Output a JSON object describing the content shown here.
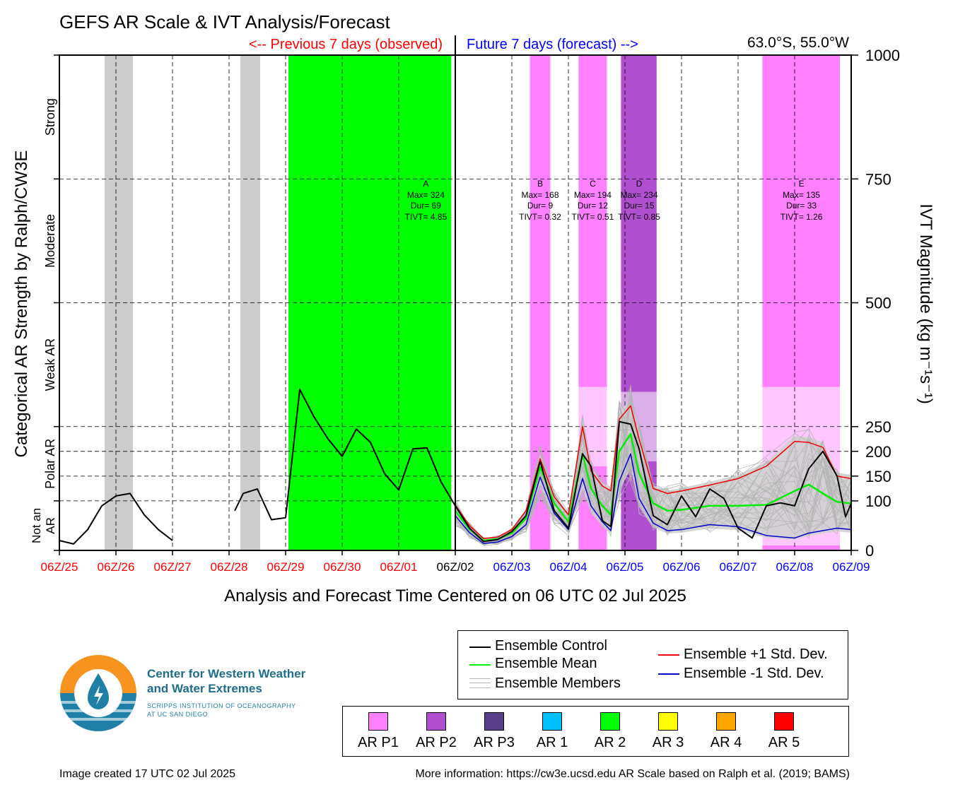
{
  "header": {
    "title": "GEFS AR Scale & IVT Analysis/Forecast",
    "previous_label": "<-- Previous 7 days (observed)",
    "future_label": "Future 7 days (forecast) -->",
    "location": "63.0°S, 55.0°W"
  },
  "colors": {
    "previous": "#ff0000",
    "future": "#0000ff",
    "control": "#000000",
    "mean": "#00ee00",
    "plus_std": "#ee0000",
    "minus_std": "#0000cc",
    "members": "#b4b4b4",
    "spread": "#d0d0d0",
    "grey_band": "#cccccc"
  },
  "chart_data": {
    "type": "line",
    "xlabel": "Analysis and Forecast Time Centered on 06 UTC 02 Jul 2025",
    "ylabel_left": "Categorical AR Strength by Ralph/CW3E",
    "ylabel_right": "IVT Magnitude (kg m⁻¹s⁻¹)",
    "x_unit": "days relative to 06Z/02 Jul 2025",
    "xlim": [
      -7,
      7
    ],
    "ylim": [
      0,
      1000
    ],
    "x_ticks": [
      {
        "x": -7,
        "label": "06Z/25",
        "color": "#ff0000"
      },
      {
        "x": -6,
        "label": "06Z/26",
        "color": "#ff0000"
      },
      {
        "x": -5,
        "label": "06Z/27",
        "color": "#ff0000"
      },
      {
        "x": -4,
        "label": "06Z/28",
        "color": "#ff0000"
      },
      {
        "x": -3,
        "label": "06Z/29",
        "color": "#ff0000"
      },
      {
        "x": -2,
        "label": "06Z/30",
        "color": "#ff0000"
      },
      {
        "x": -1,
        "label": "06Z/01",
        "color": "#ff0000"
      },
      {
        "x": 0,
        "label": "06Z/02",
        "color": "#000000"
      },
      {
        "x": 1,
        "label": "06Z/03",
        "color": "#0000ff"
      },
      {
        "x": 2,
        "label": "06Z/04",
        "color": "#0000ff"
      },
      {
        "x": 3,
        "label": "06Z/05",
        "color": "#0000ff"
      },
      {
        "x": 4,
        "label": "06Z/06",
        "color": "#0000ff"
      },
      {
        "x": 5,
        "label": "06Z/07",
        "color": "#0000ff"
      },
      {
        "x": 6,
        "label": "06Z/08",
        "color": "#0000ff"
      },
      {
        "x": 7,
        "label": "06Z/09",
        "color": "#0000ff"
      }
    ],
    "y_ticks": [
      0,
      100,
      150,
      200,
      250,
      500,
      750,
      1000
    ],
    "categories": [
      {
        "label": "Not an AR",
        "line1": "Not an",
        "line2": "AR",
        "from": 0,
        "to": 100
      },
      {
        "label": "Polar AR",
        "line1": "Polar AR",
        "line2": "",
        "from": 100,
        "to": 250
      },
      {
        "label": "Weak AR",
        "line1": "Weak AR",
        "line2": "",
        "from": 250,
        "to": 500
      },
      {
        "label": "Moderate",
        "line1": "Moderate",
        "line2": "",
        "from": 500,
        "to": 750
      },
      {
        "label": "Strong",
        "line1": "Strong",
        "line2": "",
        "from": 750,
        "to": 1000
      }
    ],
    "grey_bands": [
      [
        -6.2,
        -5.7
      ],
      [
        -3.8,
        -3.45
      ]
    ],
    "ar_bands": [
      {
        "x0": -2.95,
        "x1": -0.07,
        "color": "#00ff00",
        "full": true
      },
      {
        "x0": 1.32,
        "x1": 1.68,
        "color": "#ff80ff",
        "full": true
      },
      {
        "x0": 2.18,
        "x1": 2.68,
        "color": "#ff80ff",
        "full": false,
        "y_gap": [
          170,
          330
        ]
      },
      {
        "x0": 2.93,
        "x1": 3.56,
        "color": "#b050d0",
        "full": false,
        "y_gap": [
          180,
          320
        ]
      },
      {
        "x0": 5.43,
        "x1": 6.8,
        "color": "#ff80ff",
        "full": false,
        "y_gap": [
          10,
          330
        ]
      }
    ],
    "events": [
      {
        "x": -0.52,
        "name": "A",
        "max": "Max= 324",
        "dur": "Dur= 69",
        "tivt": "TIVT= 4.85"
      },
      {
        "x": 1.5,
        "name": "B",
        "max": "Max= 168",
        "dur": "Dur= 9",
        "tivt": "TIVT= 0.32"
      },
      {
        "x": 2.43,
        "name": "C",
        "max": "Max= 194",
        "dur": "Dur= 12",
        "tivt": "TIVT= 0.51"
      },
      {
        "x": 3.25,
        "name": "D",
        "max": "Max= 234",
        "dur": "Dur= 15",
        "tivt": "TIVT= 0.85"
      },
      {
        "x": 6.12,
        "name": "E",
        "max": "Max= 135",
        "dur": "Dur= 33",
        "tivt": "TIVT= 1.26"
      }
    ],
    "series": [
      {
        "name": "Ensemble Control",
        "segments": [
          {
            "x": [
              -7,
              -6.75,
              -6.5,
              -6.25,
              -6,
              -5.75,
              -5.5,
              -5.25,
              -5
            ],
            "y": [
              20,
              13,
              42,
              90,
              110,
              115,
              72,
              42,
              20
            ]
          },
          {
            "x": [
              -3.9,
              -3.75,
              -3.5,
              -3.25,
              -3
            ],
            "y": [
              80,
              115,
              124,
              62,
              66
            ]
          },
          {
            "x": [
              -3,
              -2.75,
              -2.5,
              -2.25,
              -2,
              -1.75,
              -1.5,
              -1.25,
              -1,
              -0.75,
              -0.5,
              -0.25,
              0
            ],
            "y": [
              66,
              325,
              270,
              225,
              190,
              245,
              218,
              155,
              122,
              205,
              207,
              138,
              90
            ]
          },
          {
            "x": [
              0,
              0.25,
              0.5,
              0.75,
              1,
              1.25,
              1.5,
              1.75,
              2,
              2.25,
              2.4,
              2.6,
              2.75,
              2.9,
              3.1,
              3.25,
              3.5,
              3.75,
              4,
              4.25,
              4.5,
              4.75,
              5,
              5.25,
              5.5,
              5.75,
              6,
              6.25,
              6.5,
              6.75,
              6.9,
              7
            ],
            "y": [
              90,
              45,
              18,
              22,
              38,
              70,
              180,
              80,
              45,
              195,
              170,
              60,
              48,
              260,
              255,
              205,
              70,
              52,
              110,
              68,
              124,
              105,
              45,
              25,
              90,
              96,
              90,
              165,
              200,
              150,
              68,
              95
            ]
          }
        ]
      },
      {
        "name": "Ensemble Mean",
        "segments": [
          {
            "x": [
              0,
              0.25,
              0.5,
              0.75,
              1,
              1.25,
              1.5,
              1.75,
              2,
              2.25,
              2.4,
              2.6,
              2.75,
              2.9,
              3.1,
              3.25,
              3.5,
              3.75,
              4,
              4.5,
              5,
              5.5,
              6,
              6.25,
              6.5,
              6.75,
              7
            ],
            "y": [
              80,
              43,
              20,
              23,
              35,
              65,
              168,
              95,
              58,
              195,
              125,
              90,
              72,
              200,
              235,
              155,
              95,
              80,
              82,
              90,
              90,
              92,
              120,
              133,
              115,
              98,
              95
            ]
          }
        ]
      },
      {
        "name": "Ensemble +1 Std. Dev.",
        "segments": [
          {
            "x": [
              0,
              0.25,
              0.5,
              0.75,
              1,
              1.25,
              1.5,
              1.75,
              2,
              2.25,
              2.4,
              2.6,
              2.75,
              2.9,
              3.1,
              3.25,
              3.5,
              3.75,
              4,
              4.5,
              5,
              5.5,
              6,
              6.25,
              6.5,
              6.75,
              7
            ],
            "y": [
              92,
              50,
              24,
              27,
              42,
              80,
              185,
              108,
              72,
              250,
              160,
              130,
              120,
              265,
              292,
              225,
              125,
              115,
              120,
              132,
              145,
              170,
              220,
              218,
              208,
              150,
              145
            ]
          }
        ]
      },
      {
        "name": "Ensemble -1 Std. Dev.",
        "segments": [
          {
            "x": [
              0,
              0.25,
              0.5,
              0.75,
              1,
              1.25,
              1.5,
              1.75,
              2,
              2.25,
              2.4,
              2.6,
              2.75,
              2.9,
              3.1,
              3.25,
              3.5,
              3.75,
              4,
              4.5,
              5,
              5.5,
              6,
              6.25,
              6.5,
              6.75,
              7
            ],
            "y": [
              70,
              36,
              14,
              17,
              28,
              52,
              148,
              75,
              42,
              145,
              90,
              58,
              40,
              140,
              195,
              105,
              55,
              40,
              42,
              52,
              48,
              30,
              25,
              35,
              40,
              45,
              42
            ]
          }
        ]
      }
    ],
    "members_count": 30
  },
  "legend": {
    "control": "Ensemble Control",
    "mean": "Ensemble Mean",
    "members": "Ensemble Members",
    "plus_std": "Ensemble +1 Std. Dev.",
    "minus_std": "Ensemble -1 Std. Dev."
  },
  "scale": [
    {
      "label": "AR P1",
      "color": "#ff80ff"
    },
    {
      "label": "AR P2",
      "color": "#b050d0"
    },
    {
      "label": "AR P3",
      "color": "#5a3f8c"
    },
    {
      "label": "AR 1",
      "color": "#00bfff"
    },
    {
      "label": "AR 2",
      "color": "#00ff00"
    },
    {
      "label": "AR 3",
      "color": "#ffff00"
    },
    {
      "label": "AR 4",
      "color": "#ffa500"
    },
    {
      "label": "AR 5",
      "color": "#ff0000"
    }
  ],
  "logo": {
    "line1": "Center for Western Weather",
    "line2": "and Water Extremes",
    "line3": "SCRIPPS INSTITUTION OF OCEANOGRAPHY",
    "line4": "AT UC SAN DIEGO",
    "accent": "#f7931e",
    "blue": "#1f7fa6"
  },
  "footer": {
    "created": "Image created 17 UTC 02 Jul 2025",
    "info": "More information: https://cw3e.ucsd.edu AR Scale based on Ralph et al. (2019; BAMS)"
  }
}
